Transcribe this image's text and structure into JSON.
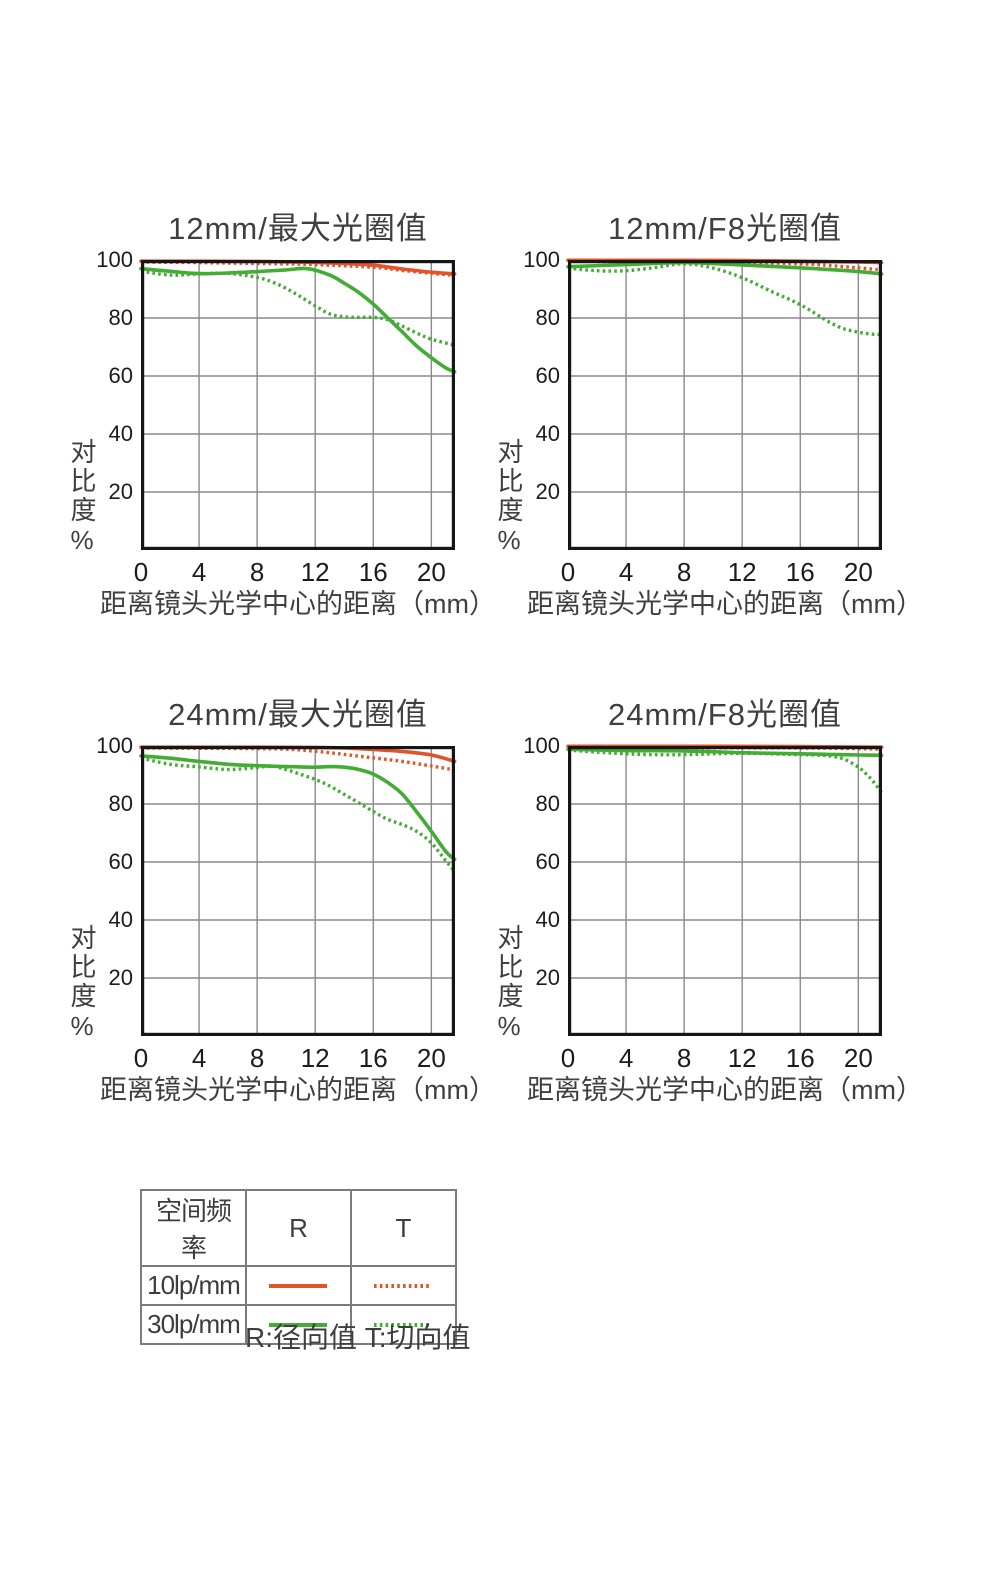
{
  "page": {
    "background": "#ffffff"
  },
  "colors": {
    "r10_orange": "#e2532b",
    "r30_green": "#43ac34",
    "grid": "#8a8a8a",
    "axis": "#161616",
    "text": "#3f3f3f"
  },
  "axes": {
    "y_label": "对比度%",
    "x_label": "距离镜头光学中心的距离（mm）",
    "y_ticks": [
      100,
      80,
      60,
      40,
      20
    ],
    "x_ticks": [
      0,
      4,
      8,
      12,
      16,
      20
    ],
    "x_max": 21.63,
    "ylim": [
      0,
      100
    ]
  },
  "legend": {
    "header": [
      "空间频率",
      "R",
      "T"
    ],
    "rows": [
      {
        "label": "10lp/mm",
        "color": "#e2532b"
      },
      {
        "label": "30lp/mm",
        "color": "#43ac34"
      }
    ],
    "caption": "R:径向值 T:切向值"
  },
  "chart_data": [
    {
      "type": "line",
      "title": "12mm/最大光圈值",
      "xlabel": "距离镜头光学中心的距离（mm）",
      "ylabel": "对比度%",
      "xlim": [
        0,
        21.63
      ],
      "ylim": [
        0,
        100
      ],
      "x_ticks": [
        0,
        4,
        8,
        12,
        16,
        20
      ],
      "y_ticks": [
        100,
        80,
        60,
        40,
        20
      ],
      "grid": true,
      "series": [
        {
          "name": "R 10lp/mm",
          "style": "solid",
          "color": "#e2532b",
          "points": [
            [
              0,
              99.6
            ],
            [
              4,
              99.6
            ],
            [
              8,
              99.5
            ],
            [
              12,
              99.2
            ],
            [
              14,
              98.8
            ],
            [
              16,
              98.2
            ],
            [
              18,
              96.9
            ],
            [
              20,
              95.8
            ],
            [
              21.6,
              95.2
            ]
          ]
        },
        {
          "name": "T 10lp/mm",
          "style": "dotted",
          "color": "#e2532b",
          "points": [
            [
              0,
              99.3
            ],
            [
              4,
              99.1
            ],
            [
              8,
              98.8
            ],
            [
              12,
              98.4
            ],
            [
              16,
              97.5
            ],
            [
              18,
              96.4
            ],
            [
              20,
              95.4
            ],
            [
              21.6,
              94.7
            ]
          ]
        },
        {
          "name": "R 30lp/mm",
          "style": "solid",
          "color": "#43ac34",
          "points": [
            [
              0,
              97
            ],
            [
              2,
              96.1
            ],
            [
              4,
              95.3
            ],
            [
              6,
              95.5
            ],
            [
              8,
              96
            ],
            [
              10,
              96.6
            ],
            [
              11.5,
              97
            ],
            [
              13,
              94.8
            ],
            [
              14,
              92
            ],
            [
              15,
              88.8
            ],
            [
              16,
              84.8
            ],
            [
              17,
              80
            ],
            [
              18,
              75.2
            ],
            [
              19,
              70.3
            ],
            [
              20,
              66.3
            ],
            [
              21,
              62.8
            ],
            [
              21.6,
              61.5
            ]
          ]
        },
        {
          "name": "T 30lp/mm",
          "style": "dotted",
          "color": "#43ac34",
          "points": [
            [
              0,
              96.2
            ],
            [
              2,
              94.8
            ],
            [
              4,
              95.2
            ],
            [
              6,
              95.4
            ],
            [
              8,
              94
            ],
            [
              9,
              92.5
            ],
            [
              10,
              90.2
            ],
            [
              11,
              87.3
            ],
            [
              12,
              84.2
            ],
            [
              13,
              81.4
            ],
            [
              14,
              80.4
            ],
            [
              15,
              80.2
            ],
            [
              16,
              80.2
            ],
            [
              17,
              79.4
            ],
            [
              18,
              77.2
            ],
            [
              19,
              74.8
            ],
            [
              20,
              72.7
            ],
            [
              21.6,
              70.6
            ]
          ]
        }
      ]
    },
    {
      "type": "line",
      "title": "12mm/F8光圈值",
      "xlabel": "距离镜头光学中心的距离（mm）",
      "ylabel": "对比度%",
      "xlim": [
        0,
        21.63
      ],
      "ylim": [
        0,
        100
      ],
      "x_ticks": [
        0,
        4,
        8,
        12,
        16,
        20
      ],
      "y_ticks": [
        100,
        80,
        60,
        40,
        20
      ],
      "grid": true,
      "series": [
        {
          "name": "R 10lp/mm",
          "style": "solid",
          "color": "#e2532b",
          "points": [
            [
              0,
              99.9
            ],
            [
              8,
              99.9
            ],
            [
              12,
              99.8
            ],
            [
              16,
              99.6
            ],
            [
              20,
              99.3
            ],
            [
              21.6,
              99.1
            ]
          ]
        },
        {
          "name": "T 10lp/mm",
          "style": "dotted",
          "color": "#e2532b",
          "points": [
            [
              0,
              99.5
            ],
            [
              8,
              99.4
            ],
            [
              12,
              99.2
            ],
            [
              16,
              98.7
            ],
            [
              18,
              98.1
            ],
            [
              20,
              97.3
            ],
            [
              21.6,
              96.6
            ]
          ]
        },
        {
          "name": "R 30lp/mm",
          "style": "solid",
          "color": "#43ac34",
          "points": [
            [
              0,
              97.7
            ],
            [
              4,
              98.4
            ],
            [
              8,
              99.1
            ],
            [
              12,
              98.3
            ],
            [
              16,
              97.3
            ],
            [
              18,
              96.7
            ],
            [
              20,
              96
            ],
            [
              21.6,
              95.2
            ]
          ]
        },
        {
          "name": "T 30lp/mm",
          "style": "dotted",
          "color": "#43ac34",
          "points": [
            [
              0,
              97.2
            ],
            [
              2,
              96.3
            ],
            [
              4,
              96.3
            ],
            [
              6,
              97.4
            ],
            [
              8,
              98.7
            ],
            [
              10,
              97.2
            ],
            [
              12,
              93.9
            ],
            [
              14,
              89.2
            ],
            [
              16,
              84.6
            ],
            [
              18,
              78.6
            ],
            [
              19,
              76.3
            ],
            [
              20,
              75.1
            ],
            [
              21,
              74.4
            ],
            [
              21.6,
              74.3
            ]
          ]
        }
      ]
    },
    {
      "type": "line",
      "title": "24mm/最大光圈值",
      "xlabel": "距离镜头光学中心的距离（mm）",
      "ylabel": "对比度%",
      "xlim": [
        0,
        21.63
      ],
      "ylim": [
        0,
        100
      ],
      "x_ticks": [
        0,
        4,
        8,
        12,
        16,
        20
      ],
      "y_ticks": [
        100,
        80,
        60,
        40,
        20
      ],
      "grid": true,
      "series": [
        {
          "name": "R 10lp/mm",
          "style": "solid",
          "color": "#e2532b",
          "points": [
            [
              0,
              99.6
            ],
            [
              8,
              99.6
            ],
            [
              12,
              99.5
            ],
            [
              14,
              99.3
            ],
            [
              16,
              98.8
            ],
            [
              18,
              98.1
            ],
            [
              20,
              96.9
            ],
            [
              21.6,
              94.7
            ]
          ]
        },
        {
          "name": "T 10lp/mm",
          "style": "dotted",
          "color": "#e2532b",
          "points": [
            [
              0,
              99.3
            ],
            [
              8,
              99.1
            ],
            [
              10,
              98.9
            ],
            [
              12,
              98.2
            ],
            [
              14,
              97.1
            ],
            [
              16,
              95.9
            ],
            [
              18,
              94.7
            ],
            [
              20,
              93.1
            ],
            [
              21.6,
              91.8
            ]
          ]
        },
        {
          "name": "R 30lp/mm",
          "style": "solid",
          "color": "#43ac34",
          "points": [
            [
              0,
              96.6
            ],
            [
              2,
              95.8
            ],
            [
              4,
              94.7
            ],
            [
              6,
              93.7
            ],
            [
              8,
              93.2
            ],
            [
              10,
              92.9
            ],
            [
              12,
              92.7
            ],
            [
              13,
              92.9
            ],
            [
              14,
              92.7
            ],
            [
              15,
              91.9
            ],
            [
              16,
              90.3
            ],
            [
              17,
              87.4
            ],
            [
              18,
              83.4
            ],
            [
              19,
              77.2
            ],
            [
              20,
              70.6
            ],
            [
              21,
              63.6
            ],
            [
              21.6,
              60.9
            ]
          ]
        },
        {
          "name": "T 30lp/mm",
          "style": "dotted",
          "color": "#43ac34",
          "points": [
            [
              0,
              95.9
            ],
            [
              2,
              93.7
            ],
            [
              4,
              92.8
            ],
            [
              6,
              91.9
            ],
            [
              8,
              92.6
            ],
            [
              9,
              93.1
            ],
            [
              10,
              91.9
            ],
            [
              11,
              90.2
            ],
            [
              12,
              88.5
            ],
            [
              13,
              86.2
            ],
            [
              14,
              83.3
            ],
            [
              15,
              80.4
            ],
            [
              16,
              77.4
            ],
            [
              17,
              74.7
            ],
            [
              18,
              72.9
            ],
            [
              19,
              70.5
            ],
            [
              20,
              66.6
            ],
            [
              21,
              60.4
            ],
            [
              21.6,
              56.9
            ]
          ]
        }
      ]
    },
    {
      "type": "line",
      "title": "24mm/F8光圈值",
      "xlabel": "距离镜头光学中心的距离（mm）",
      "ylabel": "对比度%",
      "xlim": [
        0,
        21.63
      ],
      "ylim": [
        0,
        100
      ],
      "x_ticks": [
        0,
        4,
        8,
        12,
        16,
        20
      ],
      "y_ticks": [
        100,
        80,
        60,
        40,
        20
      ],
      "grid": true,
      "series": [
        {
          "name": "R 10lp/mm",
          "style": "solid",
          "color": "#e2532b",
          "points": [
            [
              0,
              99.9
            ],
            [
              8,
              99.9
            ],
            [
              16,
              99.8
            ],
            [
              21.6,
              99.6
            ]
          ]
        },
        {
          "name": "T 10lp/mm",
          "style": "dotted",
          "color": "#e2532b",
          "points": [
            [
              0,
              99.5
            ],
            [
              8,
              99.4
            ],
            [
              16,
              99.3
            ],
            [
              20,
              99.1
            ],
            [
              21.6,
              98.9
            ]
          ]
        },
        {
          "name": "R 30lp/mm",
          "style": "solid",
          "color": "#43ac34",
          "points": [
            [
              0,
              98.9
            ],
            [
              4,
              98.4
            ],
            [
              8,
              98.3
            ],
            [
              12,
              97.7
            ],
            [
              16,
              97.3
            ],
            [
              18,
              97.1
            ],
            [
              20,
              96.9
            ],
            [
              21.6,
              96.8
            ]
          ]
        },
        {
          "name": "T 30lp/mm",
          "style": "dotted",
          "color": "#43ac34",
          "points": [
            [
              0,
              98.6
            ],
            [
              2,
              97.9
            ],
            [
              4,
              97.3
            ],
            [
              6,
              97
            ],
            [
              8,
              97
            ],
            [
              10,
              97.3
            ],
            [
              12,
              97.5
            ],
            [
              14,
              97.3
            ],
            [
              16,
              97
            ],
            [
              17,
              96.9
            ],
            [
              18,
              96.6
            ],
            [
              19,
              95.5
            ],
            [
              20,
              92.7
            ],
            [
              20.5,
              90.6
            ],
            [
              21,
              87.9
            ],
            [
              21.6,
              83.9
            ]
          ]
        }
      ]
    }
  ]
}
